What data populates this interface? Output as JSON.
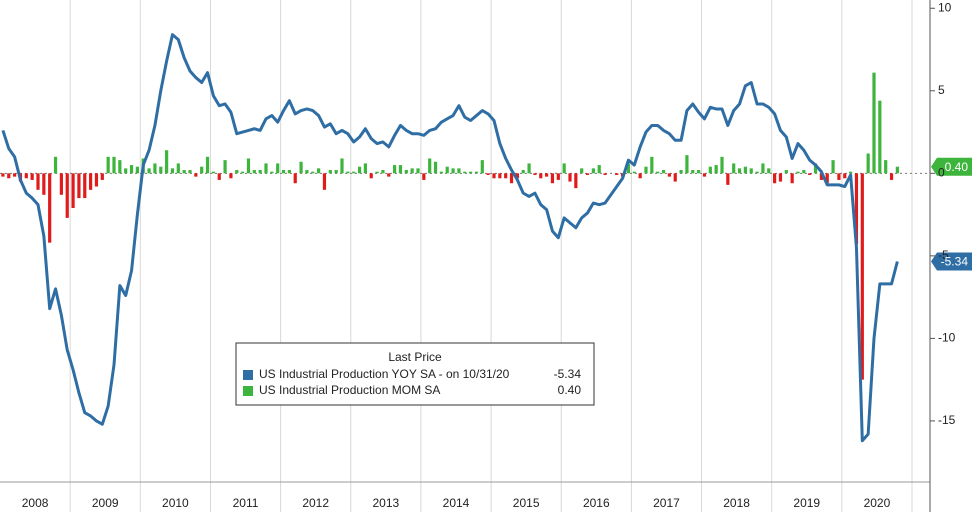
{
  "chart_data": {
    "type": "line_bar",
    "x": [
      "2008-01",
      "2008-02",
      "2008-03",
      "2008-04",
      "2008-05",
      "2008-06",
      "2008-07",
      "2008-08",
      "2008-09",
      "2008-10",
      "2008-11",
      "2008-12",
      "2009-01",
      "2009-02",
      "2009-03",
      "2009-04",
      "2009-05",
      "2009-06",
      "2009-07",
      "2009-08",
      "2009-09",
      "2009-10",
      "2009-11",
      "2009-12",
      "2010-01",
      "2010-02",
      "2010-03",
      "2010-04",
      "2010-05",
      "2010-06",
      "2010-07",
      "2010-08",
      "2010-09",
      "2010-10",
      "2010-11",
      "2010-12",
      "2011-01",
      "2011-02",
      "2011-03",
      "2011-04",
      "2011-05",
      "2011-06",
      "2011-07",
      "2011-08",
      "2011-09",
      "2011-10",
      "2011-11",
      "2011-12",
      "2012-01",
      "2012-02",
      "2012-03",
      "2012-04",
      "2012-05",
      "2012-06",
      "2012-07",
      "2012-08",
      "2012-09",
      "2012-10",
      "2012-11",
      "2012-12",
      "2013-01",
      "2013-02",
      "2013-03",
      "2013-04",
      "2013-05",
      "2013-06",
      "2013-07",
      "2013-08",
      "2013-09",
      "2013-10",
      "2013-11",
      "2013-12",
      "2014-01",
      "2014-02",
      "2014-03",
      "2014-04",
      "2014-05",
      "2014-06",
      "2014-07",
      "2014-08",
      "2014-09",
      "2014-10",
      "2014-11",
      "2014-12",
      "2015-01",
      "2015-02",
      "2015-03",
      "2015-04",
      "2015-05",
      "2015-06",
      "2015-07",
      "2015-08",
      "2015-09",
      "2015-10",
      "2015-11",
      "2015-12",
      "2016-01",
      "2016-02",
      "2016-03",
      "2016-04",
      "2016-05",
      "2016-06",
      "2016-07",
      "2016-08",
      "2016-09",
      "2016-10",
      "2016-11",
      "2016-12",
      "2017-01",
      "2017-02",
      "2017-03",
      "2017-04",
      "2017-05",
      "2017-06",
      "2017-07",
      "2017-08",
      "2017-09",
      "2017-10",
      "2017-11",
      "2017-12",
      "2018-01",
      "2018-02",
      "2018-03",
      "2018-04",
      "2018-05",
      "2018-06",
      "2018-07",
      "2018-08",
      "2018-09",
      "2018-10",
      "2018-11",
      "2018-12",
      "2019-01",
      "2019-02",
      "2019-03",
      "2019-04",
      "2019-05",
      "2019-06",
      "2019-07",
      "2019-08",
      "2019-09",
      "2019-10",
      "2019-11",
      "2019-12",
      "2020-01",
      "2020-02",
      "2020-03",
      "2020-04",
      "2020-05",
      "2020-06",
      "2020-07",
      "2020-08",
      "2020-09",
      "2020-10"
    ],
    "categories": [
      "2008",
      "2009",
      "2010",
      "2011",
      "2012",
      "2013",
      "2014",
      "2015",
      "2016",
      "2017",
      "2018",
      "2019",
      "2020"
    ],
    "series": [
      {
        "name": "US Industrial Production YOY SA",
        "legend_note": "-  on 10/31/20",
        "last_label": "-5.34",
        "kind": "line",
        "color": "#2f6ea5",
        "values": [
          2.6,
          1.5,
          1.0,
          -0.4,
          -1.2,
          -1.5,
          -1.9,
          -3.8,
          -8.2,
          -7.0,
          -8.6,
          -10.7,
          -11.9,
          -13.3,
          -14.5,
          -14.7,
          -15.0,
          -15.2,
          -14.1,
          -11.6,
          -6.8,
          -7.4,
          -5.9,
          -2.5,
          0.5,
          1.4,
          2.9,
          5.0,
          6.8,
          8.4,
          8.1,
          7.0,
          6.2,
          5.8,
          5.5,
          6.1,
          4.7,
          4.1,
          4.2,
          3.7,
          2.4,
          2.5,
          2.6,
          2.7,
          2.6,
          3.3,
          3.5,
          3.1,
          3.8,
          4.4,
          3.6,
          3.8,
          3.9,
          3.8,
          3.5,
          2.8,
          3.0,
          2.4,
          2.6,
          2.4,
          1.9,
          2.2,
          2.7,
          2.1,
          1.8,
          1.9,
          1.6,
          2.3,
          2.9,
          2.6,
          2.4,
          2.4,
          2.3,
          2.6,
          2.7,
          3.1,
          3.3,
          3.5,
          4.1,
          3.4,
          3.2,
          3.5,
          3.8,
          3.6,
          3.2,
          1.8,
          0.9,
          0.2,
          -0.4,
          -1.2,
          -1.4,
          -1.2,
          -1.9,
          -2.2,
          -3.5,
          -3.9,
          -2.7,
          -3.0,
          -3.3,
          -2.7,
          -2.4,
          -1.8,
          -1.9,
          -1.8,
          -1.3,
          -0.8,
          -0.3,
          0.8,
          0.5,
          1.6,
          2.5,
          2.9,
          2.9,
          2.6,
          2.4,
          2.0,
          2.0,
          3.8,
          4.2,
          3.7,
          3.3,
          4.0,
          3.9,
          3.9,
          2.9,
          3.8,
          4.2,
          5.3,
          5.5,
          4.2,
          4.2,
          4.0,
          3.6,
          2.6,
          2.2,
          0.9,
          1.8,
          1.4,
          0.8,
          0.5,
          0.1,
          -0.7,
          -0.7,
          -0.7,
          -0.8,
          -0.1,
          -4.5,
          -16.2,
          -15.8,
          -10.0,
          -6.7,
          -6.7,
          -6.7,
          -5.34
        ]
      },
      {
        "name": "US Industrial Production MOM SA",
        "legend_note": "",
        "last_label": "0.40",
        "kind": "bar",
        "color": "#3db53d",
        "negative_color": "#e01b1b",
        "values": [
          -0.2,
          -0.3,
          -0.2,
          -0.5,
          -0.3,
          -0.4,
          -1.0,
          -1.3,
          -4.2,
          1.0,
          -1.3,
          -2.7,
          -2.1,
          -1.5,
          -1.5,
          -1.0,
          -0.8,
          -0.4,
          1.0,
          1.0,
          0.8,
          0.3,
          0.5,
          0.4,
          0.9,
          0.3,
          0.6,
          0.4,
          1.4,
          0.3,
          0.6,
          0.2,
          0.2,
          -0.2,
          0.4,
          1.0,
          0.1,
          -0.4,
          0.8,
          -0.3,
          0.2,
          0.1,
          0.9,
          0.2,
          0.2,
          0.6,
          0.1,
          0.6,
          0.2,
          0.2,
          -0.6,
          0.7,
          0.2,
          0.1,
          0.3,
          -1.0,
          0.2,
          0.2,
          0.9,
          0.1,
          0.1,
          0.4,
          0.6,
          -0.3,
          0.1,
          0.2,
          -0.2,
          0.5,
          0.5,
          0.2,
          0.3,
          0.3,
          -0.4,
          0.9,
          0.7,
          0.1,
          0.4,
          0.3,
          0.3,
          0.1,
          0.1,
          0.1,
          0.8,
          -0.1,
          -0.3,
          -0.3,
          -0.3,
          -0.6,
          -0.3,
          0.2,
          0.6,
          -0.1,
          -0.3,
          -0.2,
          -0.6,
          -0.4,
          0.6,
          -0.5,
          -0.9,
          0.3,
          -0.1,
          0.3,
          0.5,
          -0.1,
          0.0,
          -0.1,
          -0.2,
          0.6,
          0.1,
          -0.3,
          0.4,
          1.0,
          0.1,
          0.2,
          -0.2,
          -0.5,
          0.2,
          1.1,
          0.2,
          0.2,
          -0.2,
          0.4,
          0.5,
          1.0,
          -0.7,
          0.6,
          0.3,
          0.4,
          0.3,
          0.1,
          0.6,
          0.3,
          -0.6,
          -0.5,
          0.2,
          -0.6,
          0.1,
          0.2,
          -0.1,
          0.6,
          -0.4,
          -0.6,
          0.8,
          -0.4,
          -0.3,
          0.1,
          -4.3,
          -12.5,
          1.2,
          6.1,
          4.4,
          0.8,
          -0.4,
          0.4
        ]
      }
    ],
    "legend_title": "Last Price",
    "ylim": [
      -18.7,
      10.5
    ],
    "yticks": [
      10,
      5,
      0,
      -5,
      -10,
      -15
    ],
    "zero_line": true
  }
}
